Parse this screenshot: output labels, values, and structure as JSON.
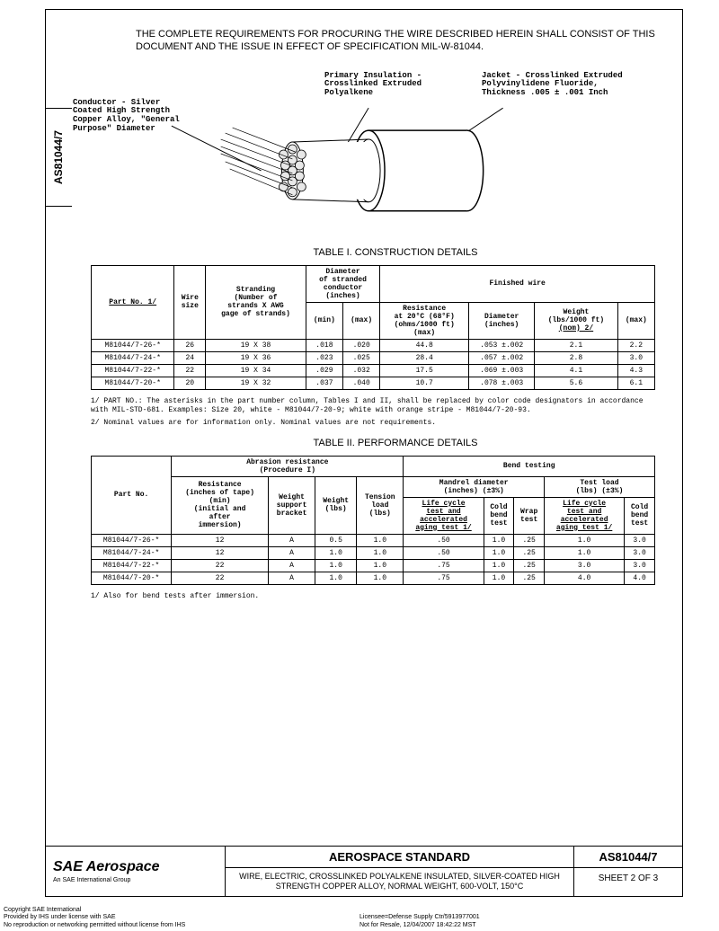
{
  "spec_number": "AS81044/7",
  "intro": "THE COMPLETE REQUIREMENTS FOR PROCURING THE WIRE DESCRIBED HEREIN SHALL CONSIST OF THIS DOCUMENT AND THE ISSUE IN EFFECT OF SPECIFICATION MIL-W-81044.",
  "figure": {
    "conductor_label": "Conductor - Silver\nCoated High Strength\nCopper Alloy, \"General\nPurpose\" Diameter",
    "insulation_label": "Primary Insulation -\nCrosslinked Extruded\nPolyalkene",
    "jacket_label": "Jacket - Crosslinked Extruded\nPolyvinylidene Fluoride,\nThickness .005 ± .001 Inch"
  },
  "table1": {
    "title": "TABLE I.  CONSTRUCTION DETAILS",
    "headers": {
      "part_no": "Part No. 1/",
      "wire_size": "Wire\nsize",
      "stranding": "Stranding\n(Number of\nstrands X AWG\ngage of strands)",
      "diameter": "Diameter\nof stranded\nconductor\n(inches)",
      "dia_min": "(min)",
      "dia_max": "(max)",
      "finished": "Finished wire",
      "resistance": "Resistance\nat 20°C (68°F)\n(ohms/1000 ft)\n(max)",
      "fin_dia": "Diameter\n(inches)",
      "weight": "Weight\n(lbs/1000 ft)",
      "w_nom": "(nom) 2/",
      "w_max": "(max)"
    },
    "rows": [
      {
        "part": "M81044/7-26-*",
        "size": "26",
        "strand": "19 X 38",
        "dmin": ".018",
        "dmax": ".020",
        "res": "44.8",
        "fdia": ".053 ±.002",
        "wnom": "2.1",
        "wmax": "2.2"
      },
      {
        "part": "M81044/7-24-*",
        "size": "24",
        "strand": "19 X 36",
        "dmin": ".023",
        "dmax": ".025",
        "res": "28.4",
        "fdia": ".057 ±.002",
        "wnom": "2.8",
        "wmax": "3.0"
      },
      {
        "part": "M81044/7-22-*",
        "size": "22",
        "strand": "19 X 34",
        "dmin": ".029",
        "dmax": ".032",
        "res": "17.5",
        "fdia": ".069 ±.003",
        "wnom": "4.1",
        "wmax": "4.3"
      },
      {
        "part": "M81044/7-20-*",
        "size": "20",
        "strand": "19 X 32",
        "dmin": ".037",
        "dmax": ".040",
        "res": "10.7",
        "fdia": ".078 ±.003",
        "wnom": "5.6",
        "wmax": "6.1"
      }
    ],
    "note1": "1/  PART NO.:  The asterisks in the part number column, Tables I and II, shall be replaced by color code designators in accordance with MIL-STD-681.  Examples:  Size 20, white - M81044/7-20-9; white with orange stripe - M81044/7-20-93.",
    "note2": "2/  Nominal values are for information only.  Nominal values are not requirements."
  },
  "table2": {
    "title": "TABLE II.  PERFORMANCE DETAILS",
    "headers": {
      "part_no": "Part No.",
      "abrasion": "Abrasion resistance\n(Procedure I)",
      "resistance": "Resistance\n(inches of tape)\n(min)\n(initial and\nafter\nimmersion)",
      "wt_bracket": "Weight\nsupport\nbracket",
      "weight": "Weight\n(lbs)",
      "tension": "Tension\nload\n(lbs)",
      "bend": "Bend testing",
      "mandrel": "Mandrel diameter\n(inches) (±3%)",
      "test_load": "Test load\n(lbs) (±3%)",
      "life1": "Life cycle\ntest and\naccelerated\naging test 1/",
      "cold_bend": "Cold\nbend\ntest",
      "wrap": "Wrap\ntest",
      "life2": "Life cycle\ntest and\naccelerated\naging test 1/",
      "cold_bend2": "Cold\nbend\ntest"
    },
    "rows": [
      {
        "part": "M81044/7-26-*",
        "res": "12",
        "wb": "A",
        "wt": "0.5",
        "tl": "1.0",
        "lc1": ".50",
        "cb1": "1.0",
        "wrap": ".25",
        "lc2": "1.0",
        "cb2": "3.0"
      },
      {
        "part": "M81044/7-24-*",
        "res": "12",
        "wb": "A",
        "wt": "1.0",
        "tl": "1.0",
        "lc1": ".50",
        "cb1": "1.0",
        "wrap": ".25",
        "lc2": "1.0",
        "cb2": "3.0"
      },
      {
        "part": "M81044/7-22-*",
        "res": "22",
        "wb": "A",
        "wt": "1.0",
        "tl": "1.0",
        "lc1": ".75",
        "cb1": "1.0",
        "wrap": ".25",
        "lc2": "3.0",
        "cb2": "3.0"
      },
      {
        "part": "M81044/7-20-*",
        "res": "22",
        "wb": "A",
        "wt": "1.0",
        "tl": "1.0",
        "lc1": ".75",
        "cb1": "1.0",
        "wrap": ".25",
        "lc2": "4.0",
        "cb2": "4.0"
      }
    ],
    "note1": "1/  Also for bend tests after immersion."
  },
  "footer": {
    "sae": "SAE Aerospace",
    "sae_sub": "An SAE International Group",
    "std_title": "AEROSPACE STANDARD",
    "desc": "WIRE, ELECTRIC, CROSSLINKED POLYALKENE INSULATED, SILVER-COATED HIGH STRENGTH COPPER ALLOY, NORMAL WEIGHT, 600-VOLT, 150°C",
    "spec": "AS81044/7",
    "sheet": "SHEET 2 OF 3"
  },
  "copyright": {
    "l1": "Copyright SAE International",
    "l2": "Provided by IHS under license with SAE",
    "l3": "No reproduction or networking permitted without license from IHS",
    "r1": "Licensee=Defense Supply Ctr/5913977001",
    "r2": "Not for Resale, 12/04/2007 18:42:22 MST"
  }
}
